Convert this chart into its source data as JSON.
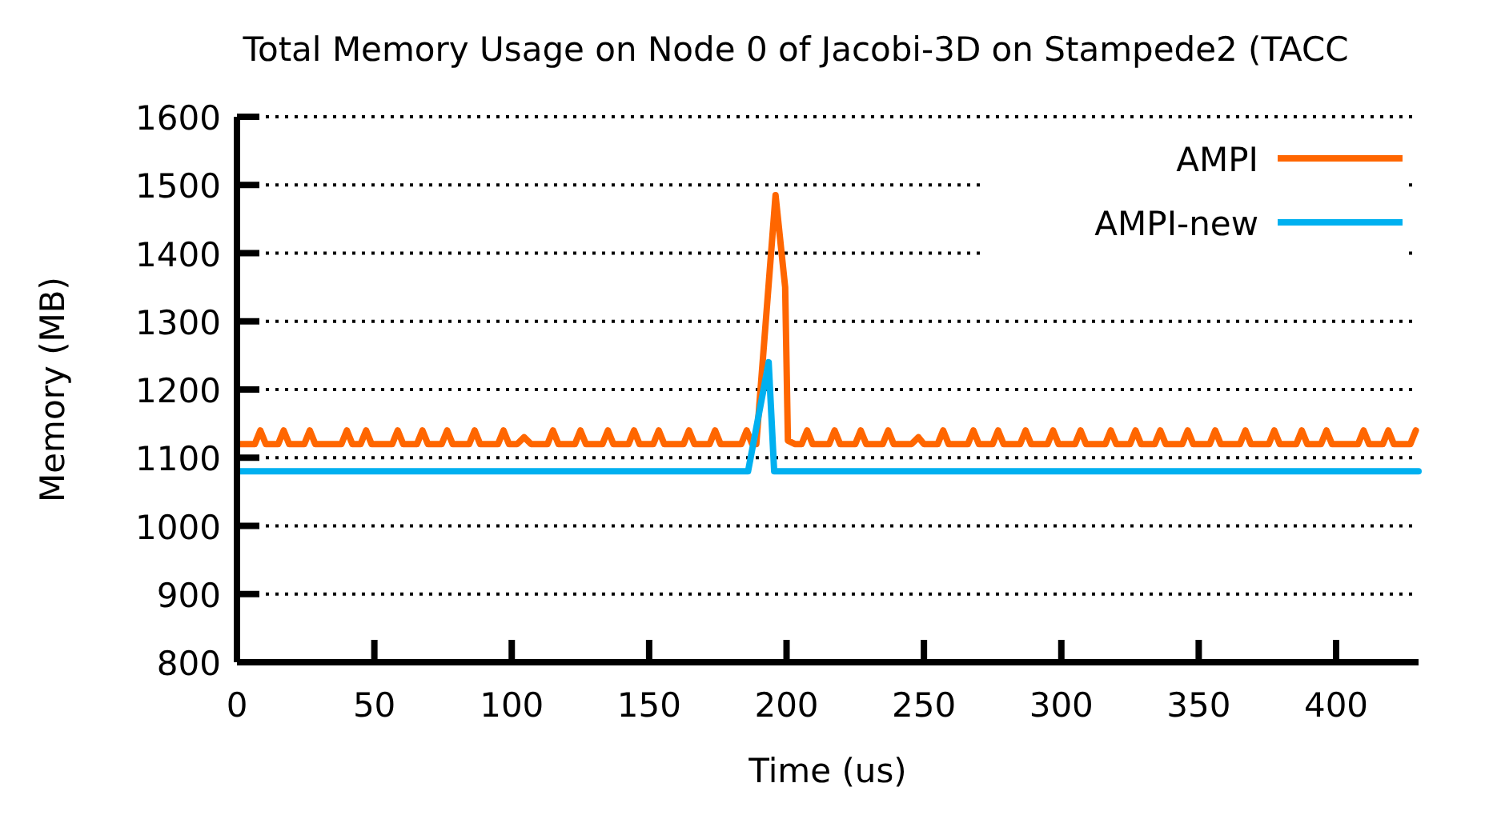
{
  "chart_data": {
    "type": "line",
    "title": "Total Memory Usage on Node 0 of Jacobi-3D on Stampede2 (TACC",
    "xlabel": "Time (us)",
    "ylabel": "Memory (MB)",
    "xlim": [
      0,
      430
    ],
    "xticks": [
      0,
      50,
      100,
      150,
      200,
      250,
      300,
      350,
      400
    ],
    "ylim": [
      800,
      1600
    ],
    "yticks": [
      800,
      900,
      1000,
      1100,
      1200,
      1300,
      1400,
      1500,
      1600
    ],
    "grid": "y",
    "legend": "top right",
    "line_style": "solid",
    "marker": "none",
    "series": [
      {
        "name": "AMPI",
        "color": "#ff6600",
        "x": [
          0,
          6.5,
          8.5,
          10.5,
          15,
          17,
          19,
          24.5,
          26.5,
          28.5,
          38,
          40,
          42,
          45,
          47,
          49,
          56.5,
          58.5,
          60.5,
          65.5,
          67.5,
          69.5,
          74.5,
          76.5,
          78.5,
          84.5,
          86.5,
          88.5,
          95,
          97,
          99,
          102,
          104.5,
          107,
          113,
          115,
          117,
          123,
          125,
          127,
          133,
          135,
          137,
          142.5,
          144.5,
          146.5,
          151.5,
          153.5,
          155.5,
          162.5,
          164.5,
          166.5,
          172,
          174,
          176,
          183.5,
          185.5,
          187.5,
          189,
          196,
          199.5,
          200.5,
          203,
          205.5,
          207.5,
          209.5,
          215.5,
          217.5,
          219.5,
          225,
          227,
          229,
          235,
          237,
          239,
          245.5,
          248,
          250,
          255,
          257,
          259,
          266,
          268,
          270,
          275,
          277,
          279,
          285,
          287,
          289,
          295,
          297,
          299,
          305,
          307,
          309,
          316,
          318,
          320,
          325,
          327,
          329,
          334,
          336,
          338,
          344,
          346,
          348,
          354,
          356,
          358,
          365,
          367,
          369,
          375.5,
          377.5,
          379.5,
          385.5,
          387.5,
          389.5,
          394.5,
          396.5,
          398.5,
          408,
          410,
          412,
          417,
          419,
          421,
          427,
          429
        ],
        "values": [
          1120,
          1120,
          1140,
          1120,
          1120,
          1140,
          1120,
          1120,
          1140,
          1120,
          1120,
          1140,
          1120,
          1120,
          1140,
          1120,
          1120,
          1140,
          1120,
          1120,
          1140,
          1120,
          1120,
          1140,
          1120,
          1120,
          1140,
          1120,
          1120,
          1140,
          1120,
          1120,
          1130,
          1120,
          1120,
          1140,
          1120,
          1120,
          1140,
          1120,
          1120,
          1140,
          1120,
          1120,
          1140,
          1120,
          1120,
          1140,
          1120,
          1120,
          1140,
          1120,
          1120,
          1140,
          1120,
          1120,
          1140,
          1120,
          1120,
          1485,
          1350,
          1125,
          1120,
          1120,
          1140,
          1120,
          1120,
          1140,
          1120,
          1120,
          1140,
          1120,
          1120,
          1140,
          1120,
          1120,
          1130,
          1120,
          1120,
          1140,
          1120,
          1120,
          1140,
          1120,
          1120,
          1140,
          1120,
          1120,
          1140,
          1120,
          1120,
          1140,
          1120,
          1120,
          1140,
          1120,
          1120,
          1140,
          1120,
          1120,
          1140,
          1120,
          1120,
          1140,
          1120,
          1120,
          1140,
          1120,
          1120,
          1140,
          1120,
          1120,
          1140,
          1120,
          1120,
          1140,
          1120,
          1120,
          1140,
          1120,
          1120,
          1140,
          1120,
          1120,
          1140,
          1120,
          1120,
          1140,
          1120,
          1120,
          1140
        ]
      },
      {
        "name": "AMPI-new",
        "color": "#00b0f0",
        "x": [
          0,
          186,
          193.5,
          195.5,
          430
        ],
        "values": [
          1080,
          1080,
          1240,
          1080,
          1080
        ]
      }
    ]
  }
}
